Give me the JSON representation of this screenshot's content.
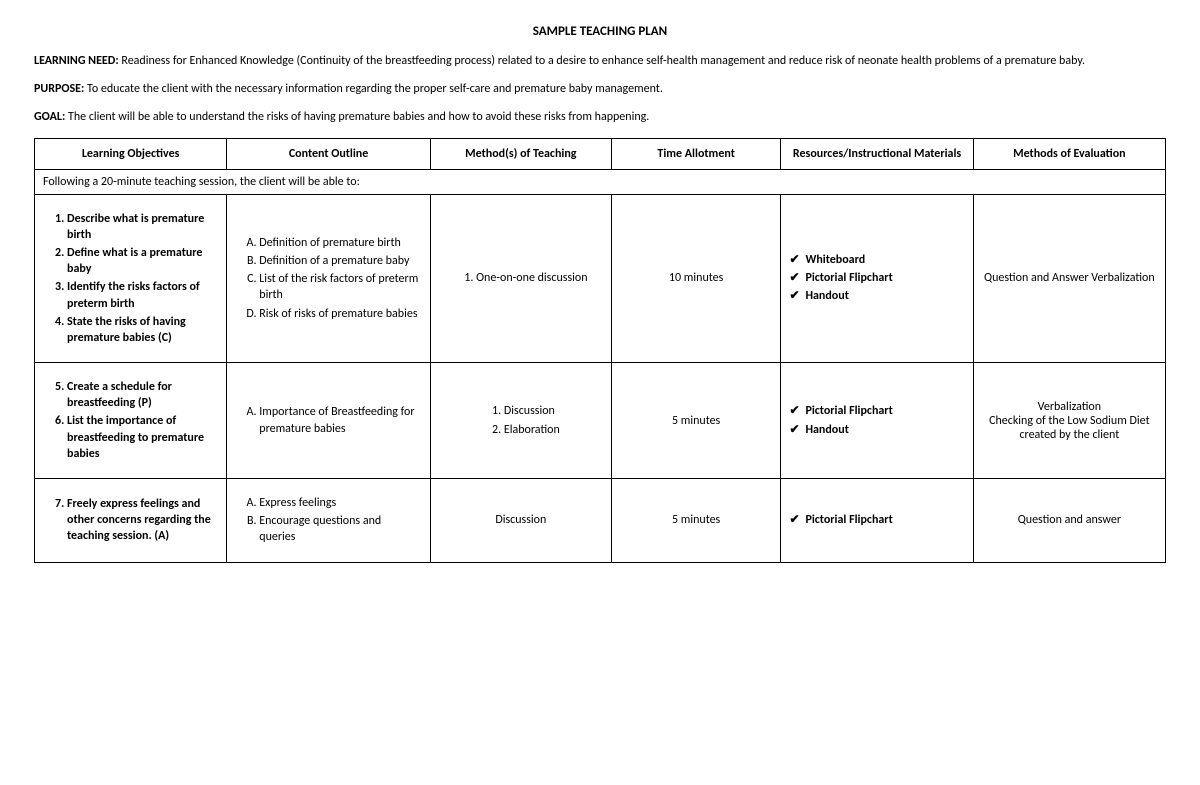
{
  "title": "SAMPLE TEACHING PLAN",
  "intro": [
    {
      "lead": "LEARNING NEED:",
      "text": " Readiness for Enhanced Knowledge (Continuity of the breastfeeding process) related to a desire to enhance self-health management and reduce risk of neonate health problems of a premature baby."
    },
    {
      "lead": "PURPOSE:",
      "text": " To educate the client with the necessary information regarding the proper self-care and premature baby management."
    },
    {
      "lead": "GOAL:",
      "text": " The client will be able to understand the risks of having premature babies and how to avoid these risks from happening."
    }
  ],
  "headers": {
    "c1": "Learning Objectives",
    "c2": "Content Outline",
    "c3": "Method(s) of Teaching",
    "c4": "Time Allotment",
    "c5": "Resources/Instructional Materials",
    "c6": "Methods of Evaluation"
  },
  "spanner": "Following a 20-minute teaching session, the client will be able to:",
  "rows": [
    {
      "objectives_start": 1,
      "objectives": [
        "Describe what is premature birth",
        "Define what is a premature baby",
        "Identify the risks factors of preterm birth",
        "State the risks of having premature babies (C)"
      ],
      "content": [
        "Definition of premature birth",
        "Definition of a premature baby",
        "List of the risk factors of preterm birth",
        "Risk of risks of premature babies"
      ],
      "methods_list": [
        "One-on-one discussion"
      ],
      "methods_text": "",
      "time": "10 minutes",
      "resources": [
        "Whiteboard",
        "Pictorial Flipchart",
        "Handout"
      ],
      "evaluation": "Question and Answer Verbalization"
    },
    {
      "objectives_start": 5,
      "objectives": [
        "Create a schedule for breastfeeding (P)",
        "List the importance of breastfeeding to premature babies"
      ],
      "content": [
        "Importance of Breastfeeding for premature babies"
      ],
      "methods_list": [
        "Discussion",
        "Elaboration"
      ],
      "methods_text": "",
      "time": "5 minutes",
      "resources": [
        "Pictorial Flipchart",
        "Handout"
      ],
      "evaluation": "Verbalization\nChecking of the Low Sodium Diet created by the client"
    },
    {
      "objectives_start": 7,
      "objectives": [
        "Freely express feelings and other concerns regarding the teaching session. (A)"
      ],
      "content": [
        "Express feelings",
        "Encourage questions and queries"
      ],
      "methods_list": [],
      "methods_text": "Discussion",
      "time": "5 minutes",
      "resources": [
        "Pictorial Flipchart"
      ],
      "evaluation": "Question and answer"
    }
  ]
}
